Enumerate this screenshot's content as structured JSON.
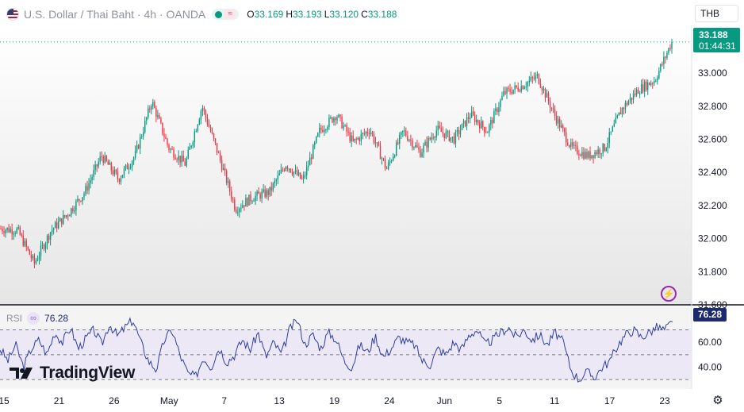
{
  "header": {
    "symbol_title": "U.S. Dollar / Thai Baht · 4h · OANDA",
    "open_label": "O",
    "open": "33.169",
    "high_label": "H",
    "high": "33.193",
    "low_label": "L",
    "low": "33.120",
    "close_label": "C",
    "close": "33.188",
    "currency": "THB"
  },
  "last_price": {
    "value": "33.188",
    "countdown": "01:44:31"
  },
  "rsi": {
    "name": "RSI",
    "value": "76.28"
  },
  "brand": {
    "name": "TradingView"
  },
  "colors": {
    "up": "#089981",
    "down": "#f23645",
    "rsi_line": "#2f3f9e",
    "rsi_band": "#ece8f6"
  },
  "icons": [
    "us-flag-icon",
    "market-open-dot-icon",
    "wave-icon",
    "bolt-icon",
    "gear-icon",
    "tradingview-logo-icon"
  ],
  "chart_data": [
    {
      "type": "candlestick",
      "title": "U.S. Dollar / Thai Baht · 4h · OANDA",
      "y_axis_ticks": [
        "33.000",
        "32.800",
        "32.600",
        "32.400",
        "32.200",
        "32.000",
        "31.800",
        "31.600"
      ],
      "ylim": [
        31.6,
        33.25
      ],
      "x_axis_ticks": [
        "15",
        "21",
        "26",
        "May",
        "7",
        "13",
        "19",
        "24",
        "Jun",
        "5",
        "11",
        "17",
        "23"
      ],
      "close_path": [
        {
          "x": "15",
          "y": 32.06
        },
        {
          "x": "17",
          "y": 32.05
        },
        {
          "x": "18",
          "y": 31.85
        },
        {
          "x": "19",
          "y": 32.05
        },
        {
          "x": "20",
          "y": 32.15
        },
        {
          "x": "21",
          "y": 32.28
        },
        {
          "x": "22",
          "y": 32.5
        },
        {
          "x": "24",
          "y": 32.36
        },
        {
          "x": "26",
          "y": 32.5
        },
        {
          "x": "28",
          "y": 32.83
        },
        {
          "x": "May",
          "y": 32.55
        },
        {
          "x": "May 2",
          "y": 32.45
        },
        {
          "x": "May 3",
          "y": 32.8
        },
        {
          "x": "May 5",
          "y": 32.5
        },
        {
          "x": "7",
          "y": 32.18
        },
        {
          "x": "8",
          "y": 32.25
        },
        {
          "x": "9",
          "y": 32.28
        },
        {
          "x": "10",
          "y": 32.45
        },
        {
          "x": "13",
          "y": 32.35
        },
        {
          "x": "15",
          "y": 32.65
        },
        {
          "x": "17",
          "y": 32.75
        },
        {
          "x": "19",
          "y": 32.58
        },
        {
          "x": "22",
          "y": 32.66
        },
        {
          "x": "24",
          "y": 32.42
        },
        {
          "x": "27",
          "y": 32.65
        },
        {
          "x": "29",
          "y": 32.52
        },
        {
          "x": "31",
          "y": 32.66
        },
        {
          "x": "Jun",
          "y": 32.6
        },
        {
          "x": "Jun 4",
          "y": 32.75
        },
        {
          "x": "5",
          "y": 32.65
        },
        {
          "x": "7",
          "y": 32.88
        },
        {
          "x": "9",
          "y": 32.92
        },
        {
          "x": "11",
          "y": 32.98
        },
        {
          "x": "12",
          "y": 32.75
        },
        {
          "x": "14",
          "y": 32.55
        },
        {
          "x": "16",
          "y": 32.5
        },
        {
          "x": "17",
          "y": 32.55
        },
        {
          "x": "19",
          "y": 32.78
        },
        {
          "x": "21",
          "y": 32.9
        },
        {
          "x": "23",
          "y": 32.96
        },
        {
          "x": "24",
          "y": 33.188
        }
      ],
      "last": {
        "open": 33.169,
        "high": 33.193,
        "low": 33.12,
        "close": 33.188
      },
      "period_high": 33.193,
      "period_low": 31.72
    },
    {
      "type": "line",
      "title": "RSI",
      "series": [
        {
          "name": "RSI",
          "last": 76.28
        }
      ],
      "y_axis_ticks": [
        "60.00",
        "40.00"
      ],
      "bands": [
        70,
        30
      ],
      "ylim": [
        25,
        85
      ],
      "values": [
        55,
        45,
        58,
        40,
        55,
        62,
        50,
        68,
        60,
        72,
        55,
        63,
        70,
        58,
        75,
        65,
        72,
        78,
        60,
        45,
        38,
        62,
        70,
        50,
        35,
        32,
        48,
        40,
        56,
        44,
        50,
        62,
        54,
        68,
        48,
        60,
        50,
        70,
        78,
        58,
        66,
        55,
        68,
        62,
        45,
        40,
        58,
        52,
        65,
        48,
        55,
        64,
        60,
        58,
        45,
        42,
        55,
        50,
        60,
        54,
        66,
        70,
        58,
        62,
        68,
        72,
        64,
        70,
        62,
        66,
        58,
        68,
        60,
        38,
        30,
        36,
        32,
        40,
        45,
        58,
        66,
        70,
        64,
        68,
        72,
        70,
        76.28
      ]
    }
  ]
}
